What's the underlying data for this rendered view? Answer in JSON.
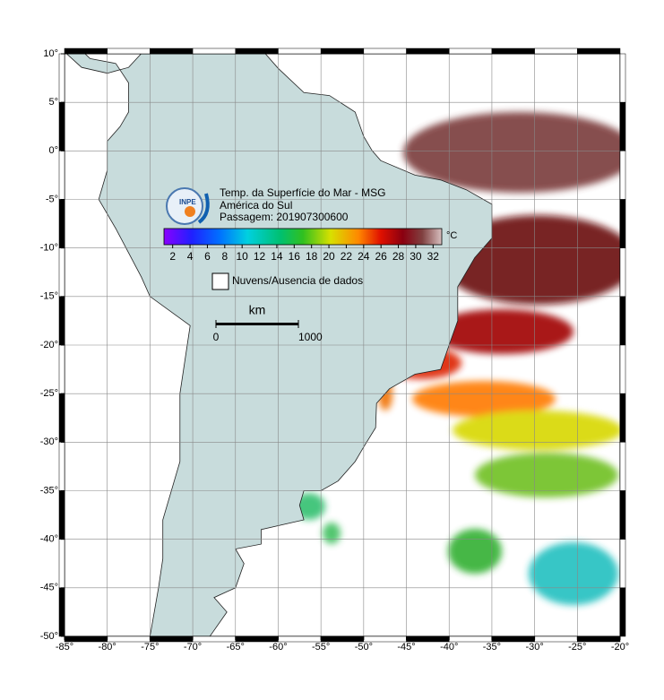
{
  "map": {
    "title_lines": [
      "Temp. da Superfície do Mar - MSG",
      "América do Sul",
      "Passagem: 201907300600"
    ],
    "logo_text": "INPE",
    "colorbar": {
      "unit": "°C",
      "range": [
        1,
        33
      ],
      "ticks": [
        2,
        4,
        6,
        8,
        10,
        12,
        14,
        16,
        18,
        20,
        22,
        24,
        26,
        28,
        30,
        32
      ]
    },
    "legend": "Nuvens/Ausencia de dados",
    "scale_bar": {
      "unit": "km",
      "ticks": [
        0,
        1000
      ]
    },
    "xlim": [
      -85,
      -20
    ],
    "ylim": [
      -50,
      10
    ],
    "xticks": [
      {
        "value": -85,
        "label": "-85°"
      },
      {
        "value": -80,
        "label": "-80°"
      },
      {
        "value": -75,
        "label": "-75°"
      },
      {
        "value": -70,
        "label": "-70°"
      },
      {
        "value": -65,
        "label": "-65°"
      },
      {
        "value": -60,
        "label": "-60°"
      },
      {
        "value": -55,
        "label": "-55°"
      },
      {
        "value": -50,
        "label": "-50°"
      },
      {
        "value": -45,
        "label": "-45°"
      },
      {
        "value": -40,
        "label": "-40°"
      },
      {
        "value": -35,
        "label": "-35°"
      },
      {
        "value": -30,
        "label": "-30°"
      },
      {
        "value": -25,
        "label": "-25°"
      },
      {
        "value": -20,
        "label": "-20°"
      }
    ],
    "yticks": [
      {
        "value": 10,
        "label": "10°"
      },
      {
        "value": 5,
        "label": "5°"
      },
      {
        "value": 0,
        "label": "0°"
      },
      {
        "value": -5,
        "label": "-5°"
      },
      {
        "value": -10,
        "label": "-10°"
      },
      {
        "value": -15,
        "label": "-15°"
      },
      {
        "value": -20,
        "label": "-20°"
      },
      {
        "value": -25,
        "label": "-25°"
      },
      {
        "value": -30,
        "label": "-30°"
      },
      {
        "value": -35,
        "label": "-35°"
      },
      {
        "value": -40,
        "label": "-40°"
      },
      {
        "value": -45,
        "label": "-45°"
      },
      {
        "value": -50,
        "label": "-50°"
      }
    ],
    "grid": true
  }
}
